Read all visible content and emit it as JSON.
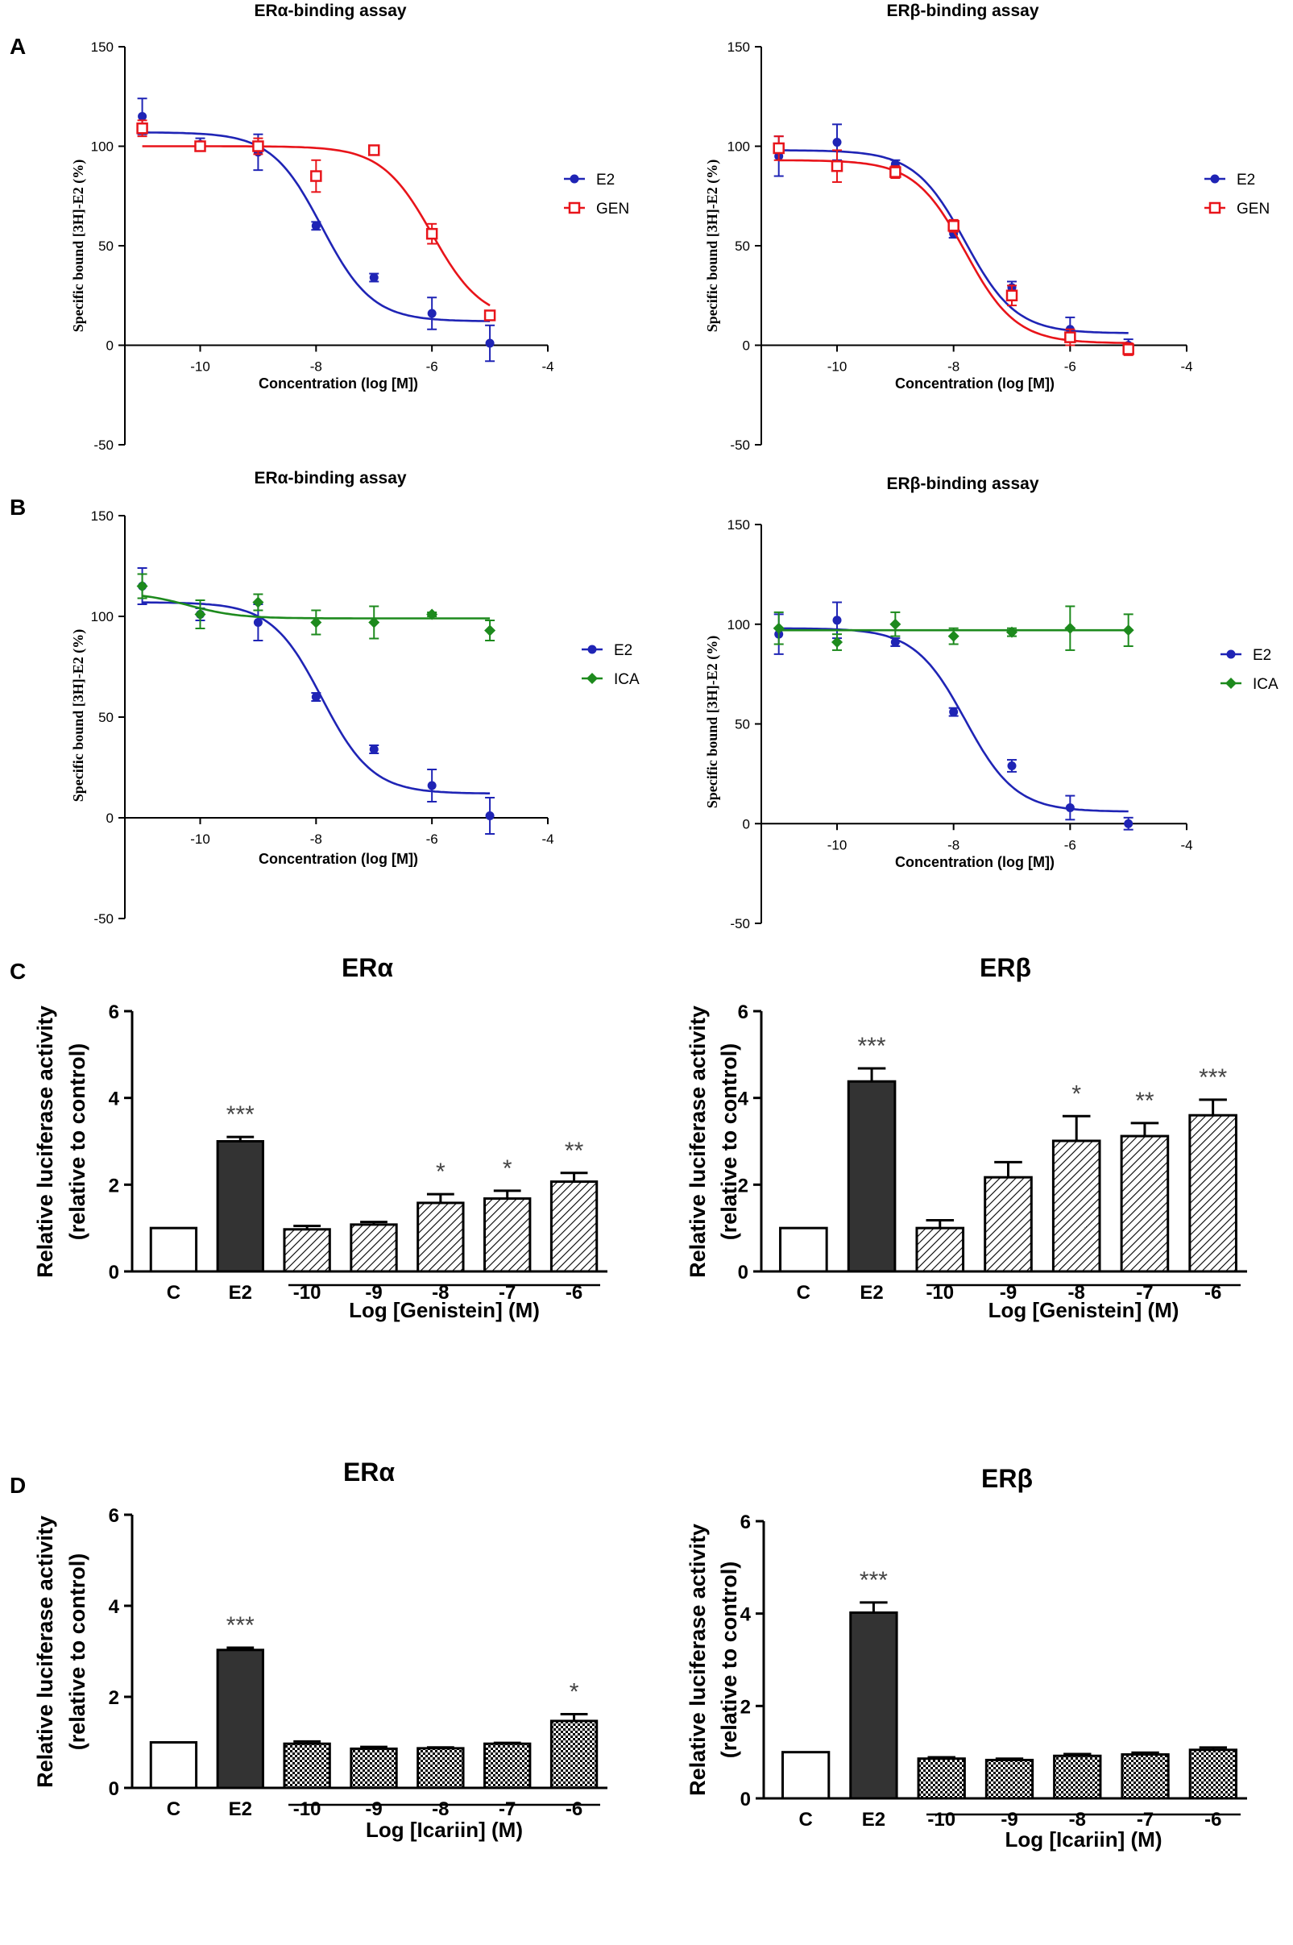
{
  "figure": {
    "panel_labels": [
      "A",
      "B",
      "C",
      "D"
    ]
  },
  "colors": {
    "e2": "#1f24b5",
    "gen": "#e8141a",
    "ica": "#1d8a1d",
    "dark_bar": "#333333",
    "axis": "#000000"
  },
  "chart_data": [
    {
      "id": "A-left",
      "type": "line",
      "title": "ERα-binding assay",
      "xlabel": "Concentration (log [M])",
      "ylabel": "Specific bound [3H]-E2 (%)",
      "xlim": [
        -11.3,
        -4
      ],
      "ylim": [
        -50,
        150
      ],
      "xticks": [
        -10,
        -8,
        -6,
        -4
      ],
      "yticks": [
        -50,
        0,
        50,
        100,
        150
      ],
      "legend_position": "right",
      "series": [
        {
          "name": "E2",
          "color_key": "e2",
          "marker": "dot",
          "x": [
            -11,
            -10,
            -9,
            -8,
            -7,
            -6,
            -5
          ],
          "y": [
            115,
            101,
            97,
            60,
            34,
            16,
            1
          ],
          "err": [
            9,
            3,
            9,
            2,
            2,
            8,
            9
          ],
          "fit": {
            "top": 107,
            "bottom": 12,
            "logec50": -7.9,
            "hill": 1
          }
        },
        {
          "name": "GEN",
          "color_key": "gen",
          "marker": "square",
          "x": [
            -11,
            -10,
            -9,
            -8,
            -7,
            -6,
            -5
          ],
          "y": [
            109,
            100,
            100,
            85,
            98,
            56,
            15
          ],
          "err": [
            4,
            2,
            4,
            8,
            2,
            5,
            2
          ],
          "fit": {
            "top": 100,
            "bottom": 12,
            "logec50": -6.0,
            "hill": 1
          }
        }
      ]
    },
    {
      "id": "A-right",
      "type": "line",
      "title": "ERβ-binding assay",
      "xlabel": "Concentration (log [M])",
      "ylabel": "Specific bound [3H]-E2 (%)",
      "xlim": [
        -11.3,
        -4
      ],
      "ylim": [
        -50,
        150
      ],
      "xticks": [
        -10,
        -8,
        -6,
        -4
      ],
      "yticks": [
        -50,
        0,
        50,
        100,
        150
      ],
      "legend_position": "right",
      "series": [
        {
          "name": "E2",
          "color_key": "e2",
          "marker": "dot",
          "x": [
            -11,
            -10,
            -9,
            -8,
            -7,
            -6,
            -5
          ],
          "y": [
            95,
            102,
            91,
            56,
            29,
            8,
            0
          ],
          "err": [
            10,
            9,
            2,
            2,
            3,
            6,
            3
          ],
          "fit": {
            "top": 98,
            "bottom": 6,
            "logec50": -7.8,
            "hill": 1
          }
        },
        {
          "name": "GEN",
          "color_key": "gen",
          "marker": "square",
          "x": [
            -11,
            -10,
            -9,
            -8,
            -7,
            -6,
            -5
          ],
          "y": [
            99,
            90,
            87,
            60,
            25,
            4,
            -2
          ],
          "err": [
            6,
            8,
            3,
            3,
            5,
            4,
            3
          ],
          "fit": {
            "top": 93,
            "bottom": 1,
            "logec50": -7.8,
            "hill": 1
          }
        }
      ]
    },
    {
      "id": "B-left",
      "type": "line",
      "title": "ERα-binding assay",
      "xlabel": "Concentration (log [M])",
      "ylabel": "Specific bound [3H]-E2 (%)",
      "xlim": [
        -11.3,
        -4
      ],
      "ylim": [
        -50,
        150
      ],
      "xticks": [
        -10,
        -8,
        -6,
        -4
      ],
      "yticks": [
        -50,
        0,
        50,
        100,
        150
      ],
      "legend_position": "right",
      "series": [
        {
          "name": "E2",
          "color_key": "e2",
          "marker": "dot",
          "x": [
            -11,
            -10,
            -9,
            -8,
            -7,
            -6,
            -5
          ],
          "y": [
            115,
            101,
            97,
            60,
            34,
            16,
            1
          ],
          "err": [
            9,
            3,
            9,
            2,
            2,
            8,
            9
          ],
          "fit": {
            "top": 107,
            "bottom": 12,
            "logec50": -7.9,
            "hill": 1
          }
        },
        {
          "name": "ICA",
          "color_key": "ica",
          "marker": "diamond",
          "x": [
            -11,
            -10,
            -9,
            -8,
            -7,
            -6,
            -5
          ],
          "y": [
            115,
            101,
            107,
            97,
            97,
            101,
            93
          ],
          "err": [
            6,
            7,
            4,
            6,
            8,
            1,
            5
          ],
          "fit": {
            "top": 112,
            "bottom": 99,
            "logec50": -10.2,
            "hill": 1
          }
        }
      ]
    },
    {
      "id": "B-right",
      "type": "line",
      "title": "ERβ-binding assay",
      "xlabel": "Concentration (log [M])",
      "ylabel": "Specific bound [3H]-E2 (%)",
      "xlim": [
        -11.3,
        -4
      ],
      "ylim": [
        -50,
        150
      ],
      "xticks": [
        -10,
        -8,
        -6,
        -4
      ],
      "yticks": [
        -50,
        0,
        50,
        100,
        150
      ],
      "legend_position": "right",
      "series": [
        {
          "name": "E2",
          "color_key": "e2",
          "marker": "dot",
          "x": [
            -11,
            -10,
            -9,
            -8,
            -7,
            -6,
            -5
          ],
          "y": [
            95,
            102,
            91,
            56,
            29,
            8,
            0
          ],
          "err": [
            10,
            9,
            2,
            2,
            3,
            6,
            3
          ],
          "fit": {
            "top": 98,
            "bottom": 6,
            "logec50": -7.8,
            "hill": 1
          }
        },
        {
          "name": "ICA",
          "color_key": "ica",
          "marker": "diamond",
          "x": [
            -11,
            -10,
            -9,
            -8,
            -7,
            -6,
            -5
          ],
          "y": [
            98,
            91,
            100,
            94,
            96,
            98,
            97
          ],
          "err": [
            8,
            4,
            6,
            4,
            2,
            11,
            8
          ],
          "fit": {
            "top": 97,
            "bottom": 97,
            "logec50": -8.0,
            "hill": 1
          }
        }
      ]
    },
    {
      "id": "C-left",
      "type": "bar",
      "title": "ERα",
      "ylabel_lines": [
        "Relative luciferase activity",
        "(relative to control)"
      ],
      "categories": [
        "C",
        "E2",
        "-10",
        "-9",
        "-8",
        "-7",
        "-6"
      ],
      "values": [
        1.0,
        3.0,
        0.97,
        1.08,
        1.58,
        1.68,
        2.07
      ],
      "errors": [
        0,
        0.1,
        0.08,
        0.06,
        0.2,
        0.18,
        0.2
      ],
      "significance": [
        "",
        "***",
        "",
        "",
        "*",
        "*",
        "**"
      ],
      "bar_styles": [
        "open",
        "solid",
        "hatch",
        "hatch",
        "hatch",
        "hatch",
        "hatch"
      ],
      "ylim": [
        0,
        6
      ],
      "yticks": [
        0,
        2,
        4,
        6
      ],
      "group_label": "Log [Genistein] (M)"
    },
    {
      "id": "C-right",
      "type": "bar",
      "title": "ERβ",
      "ylabel_lines": [
        "Relative luciferase activity",
        "(relative to control)"
      ],
      "categories": [
        "C",
        "E2",
        "-10",
        "-9",
        "-8",
        "-7",
        "-6"
      ],
      "values": [
        1.0,
        4.38,
        1.0,
        2.17,
        3.01,
        3.12,
        3.6
      ],
      "errors": [
        0,
        0.3,
        0.18,
        0.35,
        0.57,
        0.3,
        0.36
      ],
      "significance": [
        "",
        "***",
        "",
        "",
        "*",
        "**",
        "***"
      ],
      "bar_styles": [
        "open",
        "solid",
        "hatch",
        "hatch",
        "hatch",
        "hatch",
        "hatch"
      ],
      "ylim": [
        0,
        6
      ],
      "yticks": [
        0,
        2,
        4,
        6
      ],
      "group_label": "Log [Genistein] (M)"
    },
    {
      "id": "D-left",
      "type": "bar",
      "title": "ERα",
      "ylabel_lines": [
        "Relative luciferase activity",
        "(relative to control)"
      ],
      "categories": [
        "C",
        "E2",
        "-10",
        "-9",
        "-8",
        "-7",
        "-6"
      ],
      "values": [
        1.0,
        3.03,
        0.97,
        0.86,
        0.87,
        0.97,
        1.47
      ],
      "errors": [
        0,
        0.05,
        0.05,
        0.04,
        0.02,
        0.02,
        0.15
      ],
      "significance": [
        "",
        "***",
        "",
        "",
        "",
        "",
        "*"
      ],
      "bar_styles": [
        "open",
        "solid",
        "check",
        "check",
        "check",
        "check",
        "check"
      ],
      "ylim": [
        0,
        6
      ],
      "yticks": [
        0,
        2,
        4,
        6
      ],
      "group_label": "Log [Icariin] (M)"
    },
    {
      "id": "D-right",
      "type": "bar",
      "title": "ERβ",
      "ylabel_lines": [
        "Relative luciferase activity",
        "(relative to control)"
      ],
      "categories": [
        "C",
        "E2",
        "-10",
        "-9",
        "-8",
        "-7",
        "-6"
      ],
      "values": [
        1.0,
        4.02,
        0.86,
        0.83,
        0.92,
        0.95,
        1.05
      ],
      "errors": [
        0,
        0.22,
        0.03,
        0.03,
        0.04,
        0.04,
        0.05
      ],
      "significance": [
        "",
        "***",
        "",
        "",
        "",
        "",
        ""
      ],
      "bar_styles": [
        "open",
        "solid",
        "check",
        "check",
        "check",
        "check",
        "check"
      ],
      "ylim": [
        0,
        6
      ],
      "yticks": [
        0,
        2,
        4,
        6
      ],
      "group_label": "Log [Icariin] (M)"
    }
  ]
}
